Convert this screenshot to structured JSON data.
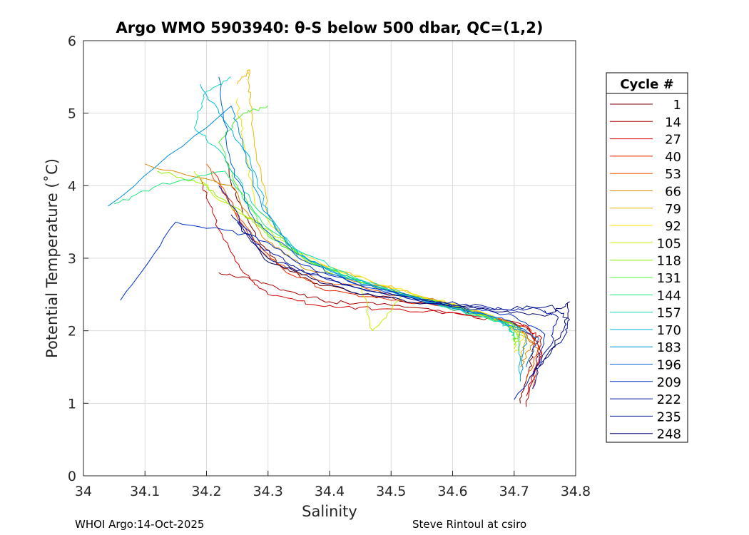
{
  "chart_data": {
    "type": "line",
    "title": "Argo WMO 5903940: θ-S below 500 dbar,  QC=(1,2)",
    "xlabel": "Salinity",
    "ylabel": "Potential Temperature (˚C)",
    "xlim": [
      34.0,
      34.8
    ],
    "ylim": [
      0,
      6
    ],
    "xticks": [
      "34",
      "34.1",
      "34.2",
      "34.3",
      "34.4",
      "34.5",
      "34.6",
      "34.7",
      "34.8"
    ],
    "xtick_values": [
      34.0,
      34.1,
      34.2,
      34.3,
      34.4,
      34.5,
      34.6,
      34.7,
      34.8
    ],
    "yticks": [
      "0",
      "1",
      "2",
      "3",
      "4",
      "5",
      "6"
    ],
    "ytick_values": [
      0,
      1,
      2,
      3,
      4,
      5,
      6
    ],
    "grid": true,
    "legend": {
      "title": "Cycle #",
      "placement": "outside-right",
      "entries": [
        {
          "label": "1",
          "color": "#7a0000"
        },
        {
          "label": "14",
          "color": "#a80000"
        },
        {
          "label": "27",
          "color": "#d40000"
        },
        {
          "label": "40",
          "color": "#e62a00"
        },
        {
          "label": "53",
          "color": "#f05a00"
        },
        {
          "label": "66",
          "color": "#d98a00"
        },
        {
          "label": "79",
          "color": "#f2b800"
        },
        {
          "label": "92",
          "color": "#f5e400"
        },
        {
          "label": "105",
          "color": "#c8f000"
        },
        {
          "label": "118",
          "color": "#8ef000"
        },
        {
          "label": "131",
          "color": "#50f030"
        },
        {
          "label": "144",
          "color": "#20e880"
        },
        {
          "label": "157",
          "color": "#10d8c0"
        },
        {
          "label": "170",
          "color": "#00b8e8"
        },
        {
          "label": "183",
          "color": "#0090e0"
        },
        {
          "label": "196",
          "color": "#0060d8"
        },
        {
          "label": "209",
          "color": "#0030c8"
        },
        {
          "label": "222",
          "color": "#0018a8"
        },
        {
          "label": "235",
          "color": "#001090"
        },
        {
          "label": "248",
          "color": "#000070"
        }
      ]
    },
    "series": [
      {
        "name": "1",
        "color": "#7a0000",
        "points": [
          [
            34.71,
            1.0
          ],
          [
            34.725,
            1.5
          ],
          [
            34.735,
            1.9
          ],
          [
            34.72,
            2.05
          ],
          [
            34.66,
            2.2
          ],
          [
            34.58,
            2.35
          ],
          [
            34.45,
            2.5
          ],
          [
            34.38,
            2.65
          ],
          [
            34.32,
            2.9
          ],
          [
            34.28,
            3.3
          ],
          [
            34.25,
            3.8
          ],
          [
            34.23,
            4.4
          ]
        ]
      },
      {
        "name": "14",
        "color": "#a80000",
        "points": [
          [
            34.72,
            0.95
          ],
          [
            34.735,
            1.5
          ],
          [
            34.74,
            1.85
          ],
          [
            34.7,
            2.1
          ],
          [
            34.62,
            2.22
          ],
          [
            34.5,
            2.35
          ],
          [
            34.4,
            2.4
          ],
          [
            34.33,
            2.55
          ],
          [
            34.28,
            2.7
          ],
          [
            34.22,
            2.8
          ]
        ]
      },
      {
        "name": "27",
        "color": "#d40000",
        "points": [
          [
            34.72,
            1.1
          ],
          [
            34.74,
            1.6
          ],
          [
            34.745,
            1.9
          ],
          [
            34.71,
            2.1
          ],
          [
            34.6,
            2.25
          ],
          [
            34.48,
            2.3
          ],
          [
            34.38,
            2.35
          ],
          [
            34.3,
            2.5
          ],
          [
            34.26,
            2.8
          ],
          [
            34.22,
            3.4
          ],
          [
            34.19,
            4.1
          ]
        ]
      },
      {
        "name": "40",
        "color": "#e62a00",
        "points": [
          [
            34.73,
            1.2
          ],
          [
            34.745,
            1.7
          ],
          [
            34.72,
            2.05
          ],
          [
            34.62,
            2.3
          ],
          [
            34.5,
            2.42
          ],
          [
            34.4,
            2.55
          ],
          [
            34.33,
            2.8
          ],
          [
            34.27,
            3.3
          ],
          [
            34.21,
            4.2
          ]
        ]
      },
      {
        "name": "53",
        "color": "#f05a00",
        "points": [
          [
            34.72,
            1.3
          ],
          [
            34.74,
            1.75
          ],
          [
            34.7,
            2.1
          ],
          [
            34.6,
            2.35
          ],
          [
            34.48,
            2.55
          ],
          [
            34.38,
            2.7
          ],
          [
            34.3,
            3.0
          ],
          [
            34.25,
            3.6
          ],
          [
            34.2,
            4.3
          ]
        ]
      },
      {
        "name": "66",
        "color": "#d98a00",
        "points": [
          [
            34.71,
            1.5
          ],
          [
            34.73,
            1.85
          ],
          [
            34.68,
            2.15
          ],
          [
            34.58,
            2.4
          ],
          [
            34.46,
            2.65
          ],
          [
            34.36,
            2.85
          ],
          [
            34.29,
            3.3
          ],
          [
            34.24,
            4.0
          ],
          [
            34.1,
            4.3
          ]
        ]
      },
      {
        "name": "79",
        "color": "#f2b800",
        "points": [
          [
            34.71,
            1.6
          ],
          [
            34.72,
            1.9
          ],
          [
            34.66,
            2.2
          ],
          [
            34.56,
            2.45
          ],
          [
            34.44,
            2.75
          ],
          [
            34.35,
            3.0
          ],
          [
            34.3,
            3.6
          ],
          [
            34.28,
            4.5
          ],
          [
            34.27,
            5.2
          ],
          [
            34.27,
            5.6
          ],
          [
            34.25,
            5.4
          ]
        ]
      },
      {
        "name": "92",
        "color": "#f5e400",
        "points": [
          [
            34.7,
            1.7
          ],
          [
            34.72,
            1.95
          ],
          [
            34.65,
            2.25
          ],
          [
            34.54,
            2.5
          ],
          [
            34.42,
            2.8
          ],
          [
            34.34,
            3.1
          ],
          [
            34.28,
            3.7
          ],
          [
            34.26,
            4.6
          ],
          [
            34.25,
            5.2
          ]
        ]
      },
      {
        "name": "105",
        "color": "#c8f000",
        "points": [
          [
            34.7,
            1.75
          ],
          [
            34.71,
            2.0
          ],
          [
            34.63,
            2.28
          ],
          [
            34.52,
            2.5
          ],
          [
            34.47,
            2.0
          ],
          [
            34.45,
            2.7
          ],
          [
            34.36,
            3.0
          ],
          [
            34.3,
            3.4
          ],
          [
            34.22,
            3.8
          ],
          [
            34.18,
            4.2
          ]
        ]
      },
      {
        "name": "118",
        "color": "#8ef000",
        "points": [
          [
            34.7,
            1.8
          ],
          [
            34.71,
            2.05
          ],
          [
            34.62,
            2.3
          ],
          [
            34.5,
            2.55
          ],
          [
            34.4,
            2.8
          ],
          [
            34.32,
            3.2
          ],
          [
            34.26,
            3.6
          ],
          [
            34.2,
            4.0
          ],
          [
            34.12,
            4.2
          ]
        ]
      },
      {
        "name": "131",
        "color": "#50f030",
        "points": [
          [
            34.7,
            1.85
          ],
          [
            34.7,
            2.08
          ],
          [
            34.6,
            2.32
          ],
          [
            34.48,
            2.6
          ],
          [
            34.38,
            2.9
          ],
          [
            34.3,
            3.3
          ],
          [
            34.25,
            4.0
          ],
          [
            34.22,
            4.6
          ],
          [
            34.26,
            5.0
          ],
          [
            34.3,
            5.1
          ]
        ]
      },
      {
        "name": "144",
        "color": "#20e880",
        "points": [
          [
            34.7,
            1.9
          ],
          [
            34.69,
            2.1
          ],
          [
            34.58,
            2.35
          ],
          [
            34.46,
            2.65
          ],
          [
            34.36,
            3.0
          ],
          [
            34.29,
            3.5
          ],
          [
            34.23,
            4.2
          ],
          [
            34.12,
            4.0
          ],
          [
            34.05,
            3.75
          ]
        ]
      },
      {
        "name": "157",
        "color": "#10d8c0",
        "points": [
          [
            34.7,
            1.95
          ],
          [
            34.68,
            2.12
          ],
          [
            34.57,
            2.38
          ],
          [
            34.45,
            2.7
          ],
          [
            34.35,
            3.1
          ],
          [
            34.28,
            3.7
          ],
          [
            34.22,
            4.5
          ],
          [
            34.18,
            4.8
          ],
          [
            34.2,
            5.3
          ],
          [
            34.24,
            5.5
          ]
        ]
      },
      {
        "name": "170",
        "color": "#00b8e8",
        "points": [
          [
            34.71,
            1.4
          ],
          [
            34.71,
            2.0
          ],
          [
            34.66,
            2.2
          ],
          [
            34.56,
            2.4
          ],
          [
            34.44,
            2.7
          ],
          [
            34.35,
            3.05
          ],
          [
            34.3,
            3.6
          ],
          [
            34.27,
            4.4
          ],
          [
            34.22,
            5.0
          ],
          [
            34.19,
            5.4
          ]
        ]
      },
      {
        "name": "183",
        "color": "#0090e0",
        "points": [
          [
            34.71,
            1.3
          ],
          [
            34.72,
            1.95
          ],
          [
            34.66,
            2.2
          ],
          [
            34.55,
            2.42
          ],
          [
            34.43,
            2.72
          ],
          [
            34.34,
            3.1
          ],
          [
            34.29,
            3.7
          ],
          [
            34.26,
            4.5
          ],
          [
            34.24,
            5.1
          ],
          [
            34.04,
            3.72
          ]
        ]
      },
      {
        "name": "196",
        "color": "#0060d8",
        "points": [
          [
            34.72,
            1.5
          ],
          [
            34.74,
            1.9
          ],
          [
            34.68,
            2.18
          ],
          [
            34.57,
            2.4
          ],
          [
            34.44,
            2.65
          ],
          [
            34.35,
            3.0
          ],
          [
            34.28,
            3.5
          ],
          [
            34.24,
            4.3
          ],
          [
            34.22,
            5.5
          ]
        ]
      },
      {
        "name": "209",
        "color": "#0030c8",
        "points": [
          [
            34.73,
            1.2
          ],
          [
            34.75,
            1.95
          ],
          [
            34.7,
            2.2
          ],
          [
            34.6,
            2.35
          ],
          [
            34.46,
            2.6
          ],
          [
            34.36,
            2.9
          ],
          [
            34.28,
            3.3
          ],
          [
            34.15,
            3.5
          ],
          [
            34.06,
            2.42
          ]
        ]
      },
      {
        "name": "222",
        "color": "#0018a8",
        "points": [
          [
            34.7,
            1.05
          ],
          [
            34.76,
            1.8
          ],
          [
            34.77,
            2.2
          ],
          [
            34.74,
            2.3
          ],
          [
            34.66,
            2.3
          ],
          [
            34.55,
            2.4
          ],
          [
            34.44,
            2.6
          ],
          [
            34.35,
            2.85
          ],
          [
            34.28,
            3.2
          ],
          [
            34.22,
            4.0
          ]
        ]
      },
      {
        "name": "235",
        "color": "#001090",
        "points": [
          [
            34.73,
            1.4
          ],
          [
            34.78,
            1.9
          ],
          [
            34.79,
            2.15
          ],
          [
            34.76,
            2.35
          ],
          [
            34.68,
            2.3
          ],
          [
            34.58,
            2.4
          ],
          [
            34.46,
            2.55
          ],
          [
            34.36,
            2.8
          ],
          [
            34.3,
            3.0
          ],
          [
            34.24,
            3.6
          ]
        ]
      },
      {
        "name": "248",
        "color": "#000070",
        "points": [
          [
            34.74,
            1.5
          ],
          [
            34.78,
            2.0
          ],
          [
            34.79,
            2.4
          ],
          [
            34.75,
            2.2
          ],
          [
            34.66,
            2.28
          ],
          [
            34.56,
            2.38
          ],
          [
            34.45,
            2.5
          ],
          [
            34.38,
            2.7
          ],
          [
            34.3,
            2.95
          ],
          [
            34.25,
            3.5
          ]
        ]
      }
    ]
  },
  "footer": {
    "left": "WHOI Argo:14-Oct-2025",
    "right": "Steve Rintoul at csiro"
  }
}
